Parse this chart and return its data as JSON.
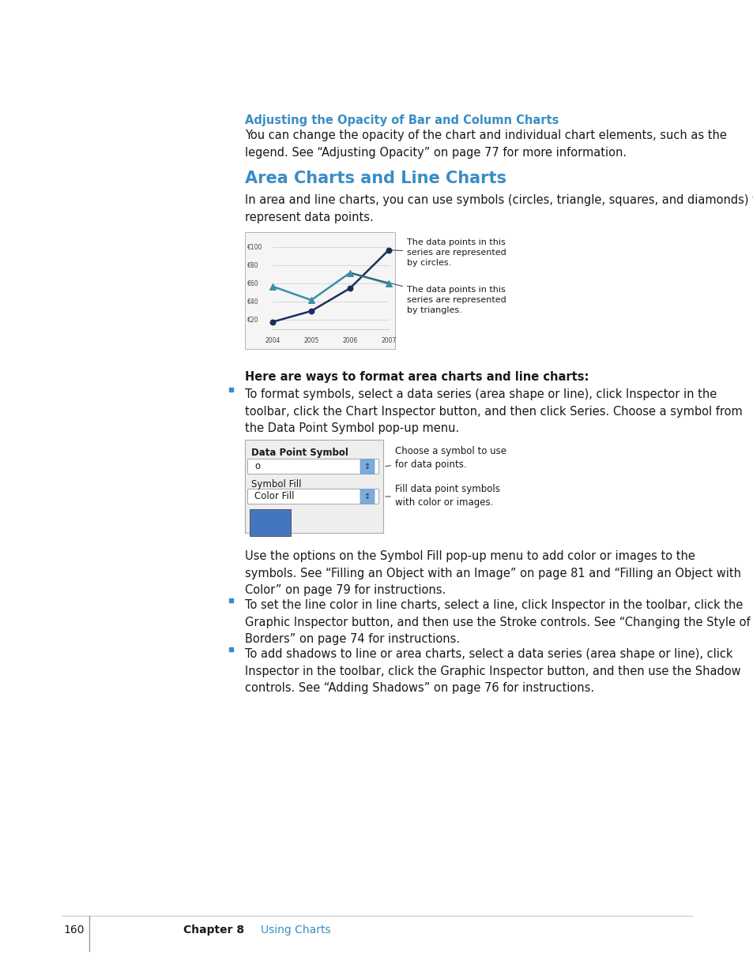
{
  "page_bg": "#ffffff",
  "page_number": "160",
  "chapter_label": "Chapter 8",
  "chapter_title": "Using Charts",
  "section1_title": "Adjusting the Opacity of Bar and Column Charts",
  "section1_title_color": "#3a8dc5",
  "section1_body": "You can change the opacity of the chart and individual chart elements, such as the\nlegend. See “Adjusting Opacity” on page 77 for more information.",
  "section2_title": "Area Charts and Line Charts",
  "section2_title_color": "#3a8dc5",
  "section2_body": "In area and line charts, you can use symbols (circles, triangle, squares, and diamonds) to\nrepresent data points.",
  "chart_annotation1": "The data points in this\nseries are represented\nby circles.",
  "chart_annotation2": "The data points in this\nseries are represented\nby triangles.",
  "chart_note_bold": "Here are ways to format area charts and line charts:",
  "bullet1": "To format symbols, select a data series (area shape or line), click Inspector in the\ntoolbar, click the Chart Inspector button, and then click Series. Choose a symbol from\nthe Data Point Symbol pop-up menu.",
  "inspector_label1": "Data Point Symbol",
  "inspector_dropdown1": "o",
  "inspector_label2": "Symbol Fill",
  "inspector_dropdown2": "Color Fill",
  "inspector_anno1": "Choose a symbol to use\nfor data points.",
  "inspector_anno2": "Fill data point symbols\nwith color or images.",
  "use_text": "Use the options on the Symbol Fill pop-up menu to add color or images to the\nsymbols. See “Filling an Object with an Image” on page 81 and “Filling an Object with\nColor” on page 79 for instructions.",
  "bullet2": "To set the line color in line charts, select a line, click Inspector in the toolbar, click the\nGraphic Inspector button, and then use the Stroke controls. See “Changing the Style of\nBorders” on page 74 for instructions.",
  "bullet3": "To add shadows to line or area charts, select a data series (area shape or line), click\nInspector in the toolbar, click the Graphic Inspector button, and then use the Shadow\ncontrols. See “Adding Shadows” on page 76 for instructions.",
  "line_color1": "#1a2f5e",
  "line_color2": "#3a8fa8",
  "body_fontsize": 10.5,
  "section2_title_fontsize": 15,
  "section1_title_fontsize": 10.5,
  "bullet_color": "#3a8dc5",
  "body_color": "#1a1a1a"
}
